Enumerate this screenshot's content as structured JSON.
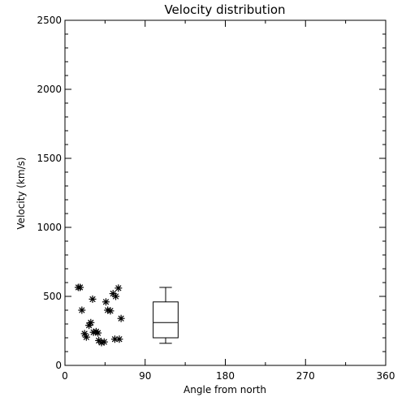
{
  "chart_data": {
    "type": "scatter",
    "title": "Velocity distribution",
    "xlabel": "Angle from north",
    "ylabel": "Velocity (km/s)",
    "xlim": [
      0,
      360
    ],
    "ylim": [
      0,
      2500
    ],
    "xticks": [
      0,
      90,
      180,
      270,
      360
    ],
    "yticks": [
      0,
      500,
      1000,
      1500,
      2000,
      2500
    ],
    "grid": false,
    "marker": "asterisk",
    "colors": {
      "background": "#ffffff",
      "ink": "#000000"
    },
    "series": [
      {
        "type": "scatter",
        "points": [
          {
            "x": 15,
            "y": 565
          },
          {
            "x": 17,
            "y": 565
          },
          {
            "x": 19,
            "y": 400
          },
          {
            "x": 22,
            "y": 230
          },
          {
            "x": 24,
            "y": 205
          },
          {
            "x": 27,
            "y": 290
          },
          {
            "x": 29,
            "y": 310
          },
          {
            "x": 31,
            "y": 480
          },
          {
            "x": 32,
            "y": 240
          },
          {
            "x": 35,
            "y": 245
          },
          {
            "x": 37,
            "y": 235
          },
          {
            "x": 38,
            "y": 180
          },
          {
            "x": 41,
            "y": 165
          },
          {
            "x": 44,
            "y": 170
          },
          {
            "x": 46,
            "y": 460
          },
          {
            "x": 48,
            "y": 400
          },
          {
            "x": 51,
            "y": 395
          },
          {
            "x": 54,
            "y": 520
          },
          {
            "x": 57,
            "y": 500
          },
          {
            "x": 56,
            "y": 190
          },
          {
            "x": 60,
            "y": 560
          },
          {
            "x": 61,
            "y": 190
          },
          {
            "x": 63,
            "y": 340
          }
        ]
      },
      {
        "type": "box",
        "x": 113,
        "width": 28,
        "min": 160,
        "q1": 200,
        "median": 310,
        "q3": 460,
        "max": 565
      }
    ]
  }
}
